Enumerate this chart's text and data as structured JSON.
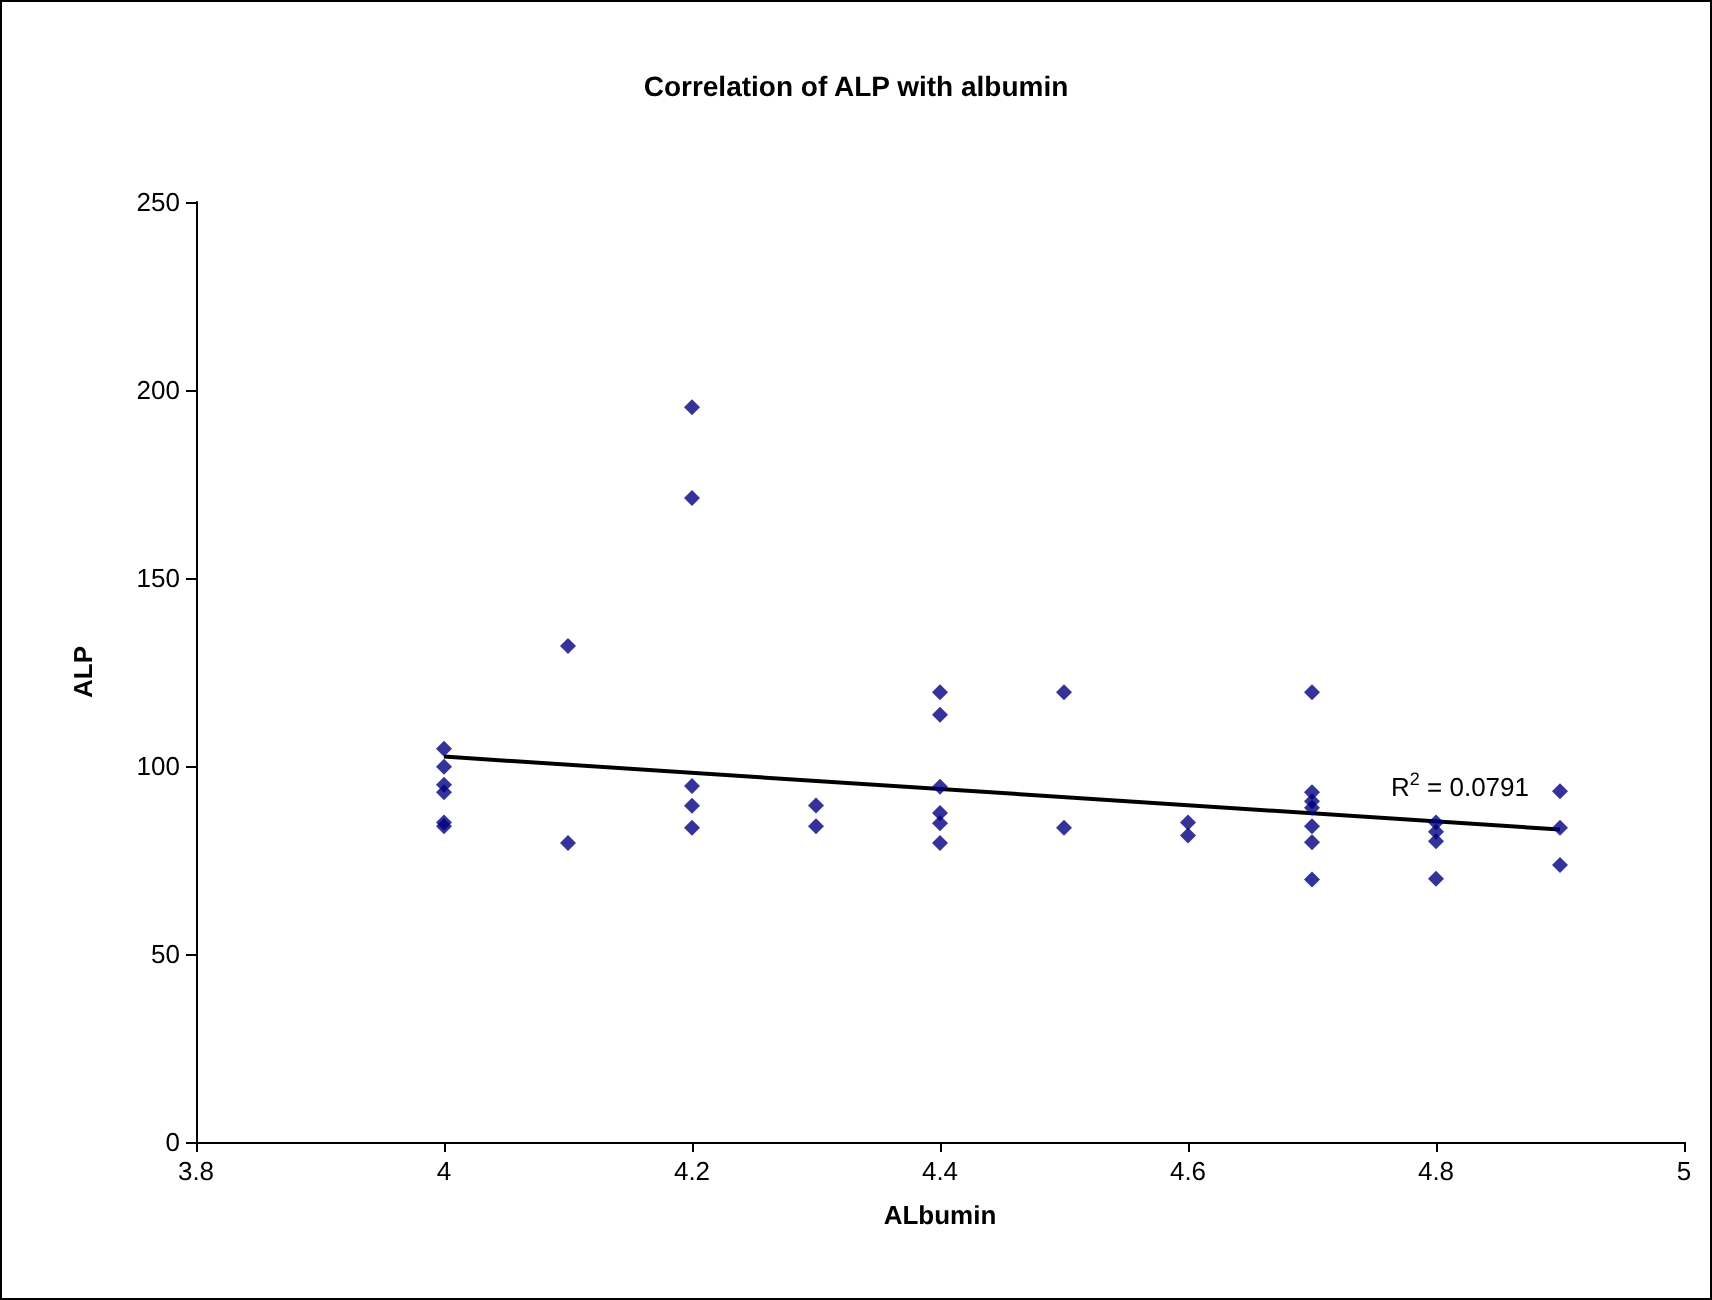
{
  "chart_data": {
    "type": "scatter",
    "title": "Correlation of ALP with albumin",
    "xlabel": "ALbumin",
    "ylabel": "ALP",
    "xlim": [
      3.8,
      5
    ],
    "xticks": [
      3.8,
      4,
      4.2,
      4.4,
      4.6,
      4.8,
      5
    ],
    "ylim": [
      0,
      250
    ],
    "yticks": [
      0,
      50,
      100,
      150,
      200,
      250
    ],
    "grid": false,
    "marker": "diamond",
    "series": [
      {
        "color": "#000080",
        "x": [
          4,
          4,
          4,
          4,
          4,
          4,
          4.1,
          4.1,
          4.2,
          4.2,
          4.2,
          4.2,
          4.2,
          4.3,
          4.3,
          4.4,
          4.4,
          4.4,
          4.4,
          4.4,
          4.4,
          4.5,
          4.5,
          4.6,
          4.6,
          4.7,
          4.7,
          4.7,
          4.7,
          4.7,
          4.7,
          4.7,
          4.8,
          4.8,
          4.8,
          4.8,
          4.9,
          4.9,
          4.9
        ],
        "values": [
          104.6,
          99.8,
          95,
          93,
          85,
          84,
          131.9,
          79.5,
          195.4,
          171.3,
          94.7,
          89.4,
          83.6,
          89.5,
          84,
          119.6,
          113.6,
          94.5,
          87.5,
          84.8,
          79.5,
          119.6,
          83.6,
          85,
          81.5,
          119.6,
          93,
          90.6,
          88.9,
          84,
          79.7,
          69.8,
          85,
          82.5,
          80,
          70,
          93.3,
          83.6,
          73.7
        ]
      },
      {
        "type": "line",
        "color": "#000000",
        "marker": "none",
        "x": [
          4,
          4.9
        ],
        "values": [
          102.5,
          83.1
        ]
      }
    ],
    "annotations": [
      "R$^{2}$ = 0.0791"
    ]
  }
}
